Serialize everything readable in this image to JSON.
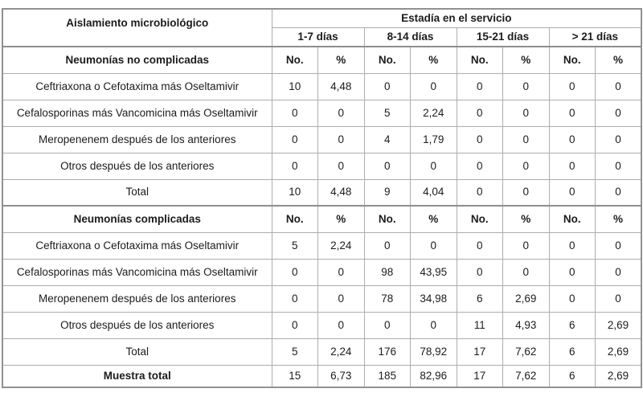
{
  "table": {
    "col1_header": "Aislamiento microbiológico",
    "group_header": "Estadía en el servicio",
    "stay_groups": [
      "1-7 días",
      "8-14 días",
      "15-21 días",
      "> 21 días"
    ],
    "no_label": "No.",
    "pct_label": "%",
    "sections": [
      {
        "title": "Neumonías no complicadas",
        "rows": [
          {
            "label": "Ceftriaxona o Cefotaxima más Oseltamivir",
            "values": [
              "10",
              "4,48",
              "0",
              "0",
              "0",
              "0",
              "0",
              "0"
            ]
          },
          {
            "label": "Cefalosporinas más Vancomicina más Oseltamivir",
            "values": [
              "0",
              "0",
              "5",
              "2,24",
              "0",
              "0",
              "0",
              "0"
            ]
          },
          {
            "label": "Meropenenem después de los anteriores",
            "values": [
              "0",
              "0",
              "4",
              "1,79",
              "0",
              "0",
              "0",
              "0"
            ]
          },
          {
            "label": "Otros después de los anteriores",
            "values": [
              "0",
              "0",
              "0",
              "0",
              "0",
              "0",
              "0",
              "0"
            ]
          },
          {
            "label": "Total",
            "values": [
              "10",
              "4,48",
              "9",
              "4,04",
              "0",
              "0",
              "0",
              "0"
            ]
          }
        ]
      },
      {
        "title": "Neumonías complicadas",
        "rows": [
          {
            "label": "Ceftriaxona o Cefotaxima más Oseltamivir",
            "values": [
              "5",
              "2,24",
              "0",
              "0",
              "0",
              "0",
              "0",
              "0"
            ]
          },
          {
            "label": "Cefalosporinas más Vancomicina más Oseltamivir",
            "values": [
              "0",
              "0",
              "98",
              "43,95",
              "0",
              "0",
              "0",
              "0"
            ]
          },
          {
            "label": "Meropenenem después de los anteriores",
            "values": [
              "0",
              "0",
              "78",
              "34,98",
              "6",
              "2,69",
              "0",
              "0"
            ]
          },
          {
            "label": "Otros después de los anteriores",
            "values": [
              "0",
              "0",
              "0",
              "0",
              "11",
              "4,93",
              "6",
              "2,69"
            ]
          },
          {
            "label": "Total",
            "values": [
              "5",
              "2,24",
              "176",
              "78,92",
              "17",
              "7,62",
              "6",
              "2,69"
            ]
          }
        ]
      }
    ],
    "footer": {
      "label": "Muestra total",
      "values": [
        "15",
        "6,73",
        "185",
        "82,96",
        "17",
        "7,62",
        "6",
        "2,69"
      ]
    }
  },
  "colors": {
    "outer_border": "#919191",
    "inner_border": "#adadad",
    "text": "#1c1c1c",
    "background": "#ffffff"
  }
}
